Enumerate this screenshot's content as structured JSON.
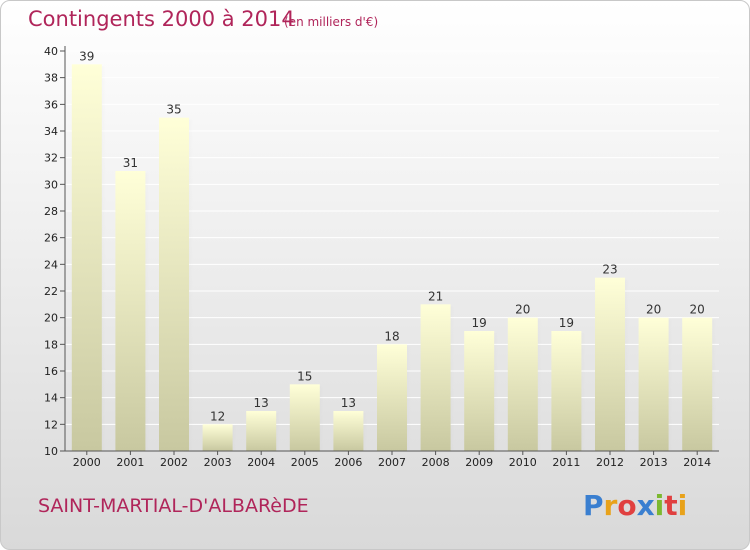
{
  "header": {
    "title": "Contingents 2000 à 2014",
    "subtitle": "(en milliers d'€)"
  },
  "footer": {
    "commune": "SAINT-MARTIAL-D'ALBARèDE",
    "logo": "Proxiti",
    "logo_colors": [
      "#3a7fd0",
      "#e8a21a",
      "#e04040",
      "#3a7fd0",
      "#7cb82f",
      "#e04040",
      "#e8a21a"
    ]
  },
  "colors": {
    "title": "#b0255a",
    "bar_top": "#ffffd8",
    "bar_bottom": "#c8c8a0"
  },
  "chart_data": {
    "type": "bar",
    "title": "Contingents 2000 à 2014",
    "subtitle": "(en milliers d'€)",
    "xlabel": "",
    "ylabel": "",
    "categories": [
      "2000",
      "2001",
      "2002",
      "2003",
      "2004",
      "2005",
      "2006",
      "2007",
      "2008",
      "2009",
      "2010",
      "2011",
      "2012",
      "2013",
      "2014"
    ],
    "values": [
      39,
      31,
      35,
      12,
      13,
      15,
      13,
      18,
      21,
      19,
      20,
      19,
      23,
      20,
      20
    ],
    "ylim": [
      10,
      40
    ],
    "yticks": [
      10,
      12,
      14,
      16,
      18,
      20,
      22,
      24,
      26,
      28,
      30,
      32,
      34,
      36,
      38,
      40
    ],
    "grid": true,
    "legend": "none"
  }
}
